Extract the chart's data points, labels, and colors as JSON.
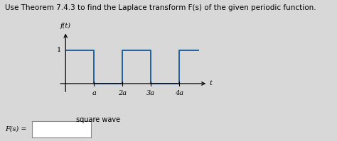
{
  "title": "Use Theorem 7.4.3 to find the Laplace transform F(s) of the given periodic function.",
  "ylabel": "f(t)",
  "xlabel": "t",
  "caption": "square wave",
  "answer_label": "F(s) =",
  "bg_color": "#d8d8d8",
  "wave_color": "#2060a0",
  "axis_color": "#2060a0",
  "tick_labels": [
    "a",
    "2a",
    "3a",
    "4a"
  ],
  "y1_label": "1",
  "title_fontsize": 7.5,
  "label_fontsize": 7,
  "caption_fontsize": 7
}
